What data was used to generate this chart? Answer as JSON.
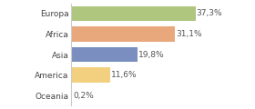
{
  "categories": [
    "Europa",
    "Africa",
    "Asia",
    "America",
    "Oceania"
  ],
  "values": [
    37.3,
    31.1,
    19.8,
    11.6,
    0.2
  ],
  "labels": [
    "37,3%",
    "31,1%",
    "19,8%",
    "11,6%",
    "0,2%"
  ],
  "bar_colors": [
    "#aec67e",
    "#e8a87c",
    "#7a8fbf",
    "#f2d080",
    "#e8a87c"
  ],
  "background_color": "#ffffff",
  "xlim": [
    0,
    46
  ],
  "bar_height": 0.72,
  "label_fontsize": 6.5,
  "tick_fontsize": 6.5
}
